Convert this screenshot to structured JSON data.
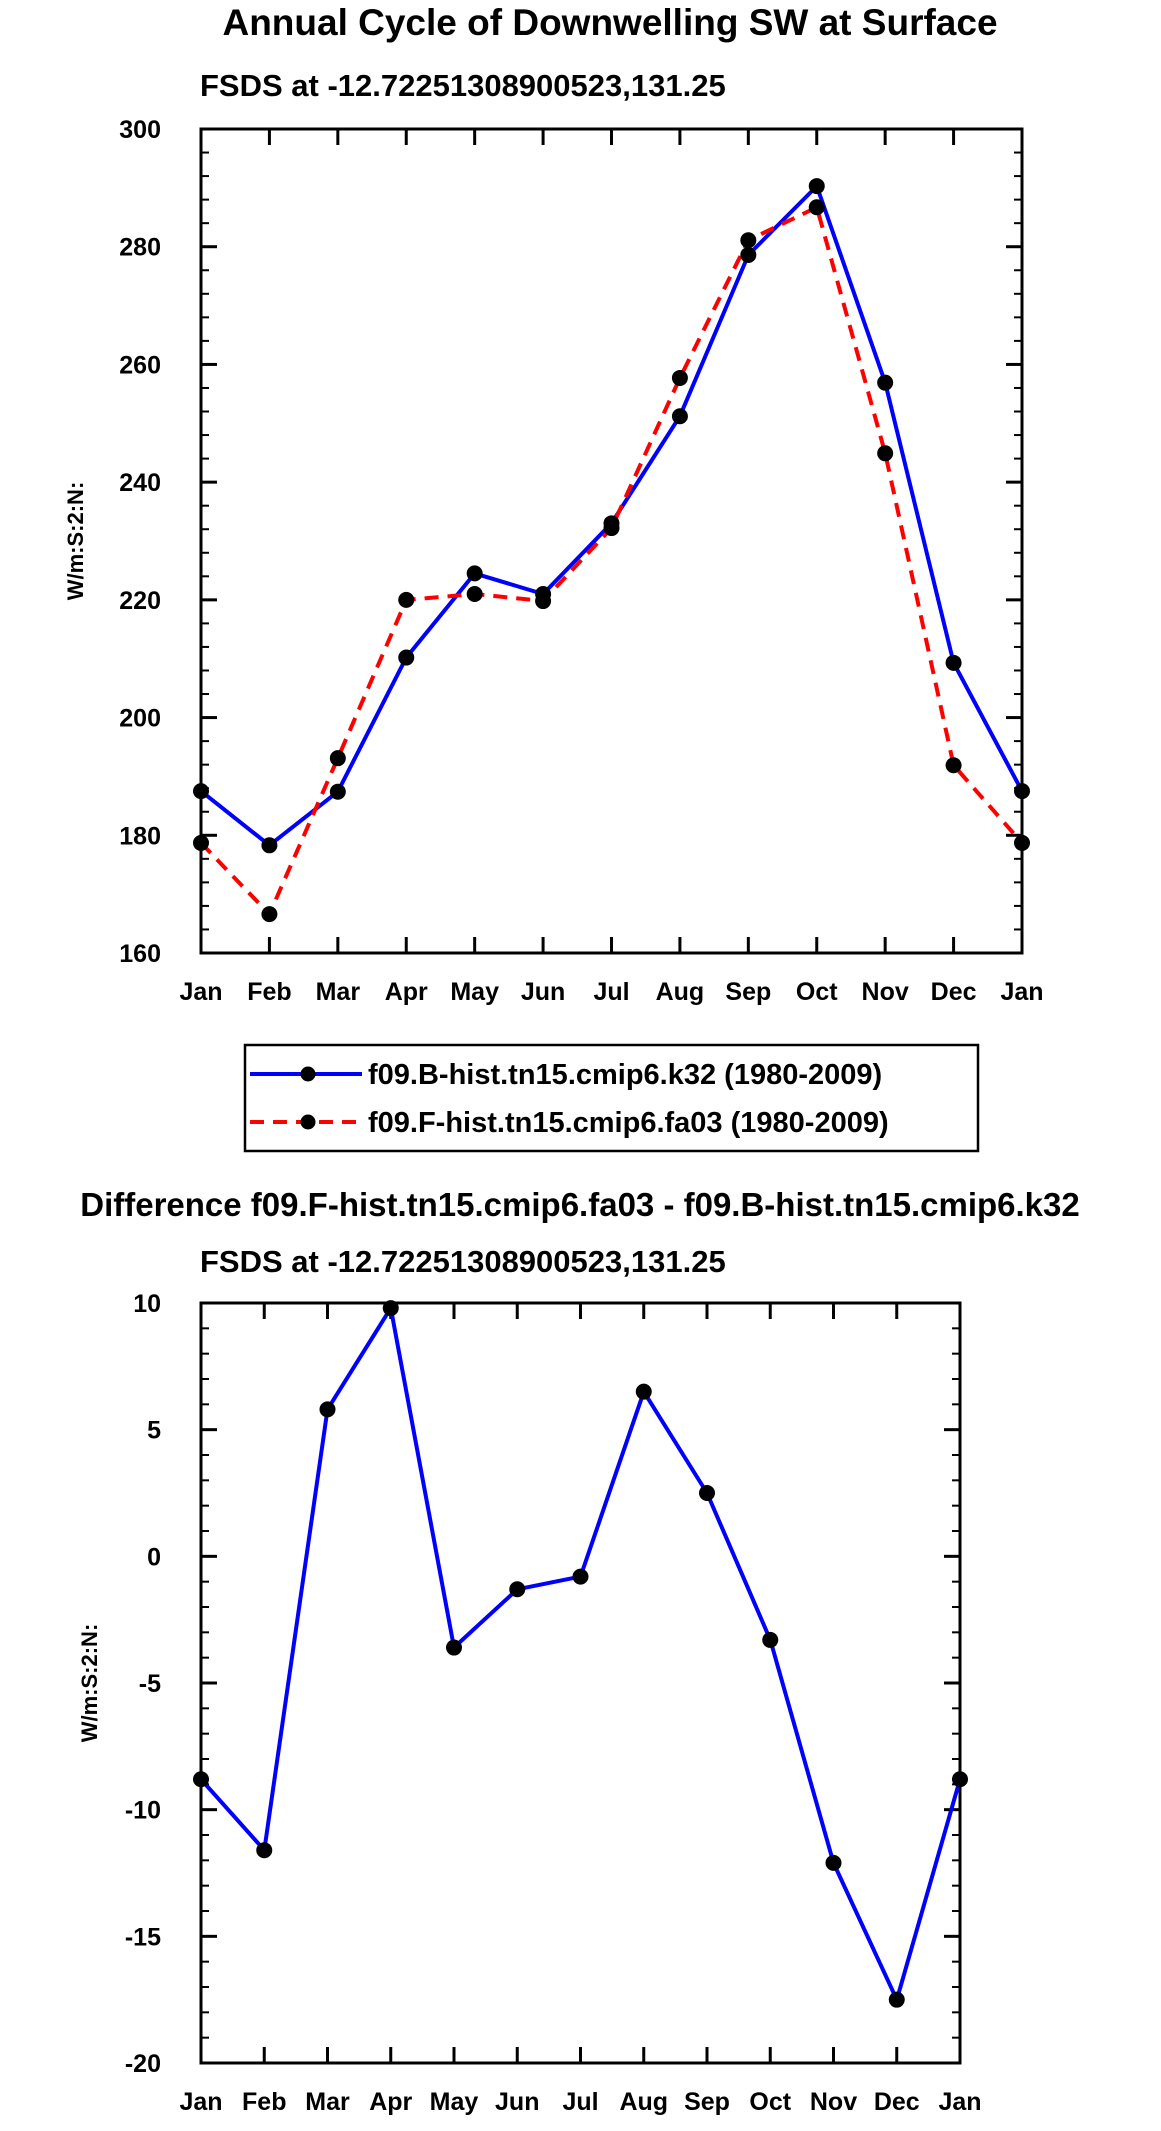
{
  "chart_data": [
    {
      "type": "line",
      "title": "Annual Cycle of Downwelling SW at Surface",
      "subtitle": "FSDS at -12.72251308900523,131.25",
      "ylabel": "W/m:S:2:N:",
      "xlabel": "",
      "categories": [
        "Jan",
        "Feb",
        "Mar",
        "Apr",
        "May",
        "Jun",
        "Jul",
        "Aug",
        "Sep",
        "Oct",
        "Nov",
        "Dec",
        "Jan"
      ],
      "ylim": [
        160,
        300
      ],
      "yticks": [
        160,
        180,
        200,
        220,
        240,
        260,
        280,
        300
      ],
      "ytick_labels": [
        "160",
        "180",
        "200",
        "220",
        "240",
        "260",
        "280",
        "300"
      ],
      "series": [
        {
          "name": "f09.B-hist.tn15.cmip6.k32 (1980-2009)",
          "color": "#0000ff",
          "dash": "solid",
          "values": [
            187.5,
            178.3,
            187.4,
            210.2,
            224.5,
            221.0,
            233.0,
            251.2,
            278.6,
            290.3,
            256.9,
            209.3,
            187.5
          ]
        },
        {
          "name": "f09.F-hist.tn15.cmip6.fa03 (1980-2009)",
          "color": "#ff0000",
          "dash": "dashed",
          "values": [
            178.7,
            166.6,
            193.1,
            220.0,
            221.0,
            219.8,
            232.2,
            257.7,
            281.1,
            286.7,
            244.9,
            191.9,
            178.7
          ]
        }
      ],
      "legend": "below"
    },
    {
      "type": "line",
      "title": "Difference f09.F-hist.tn15.cmip6.fa03 - f09.B-hist.tn15.cmip6.k32",
      "subtitle": "FSDS at -12.72251308900523,131.25",
      "ylabel": "W/m:S:2:N:",
      "xlabel": "",
      "categories": [
        "Jan",
        "Feb",
        "Mar",
        "Apr",
        "May",
        "Jun",
        "Jul",
        "Aug",
        "Sep",
        "Oct",
        "Nov",
        "Dec",
        "Jan"
      ],
      "ylim": [
        -20,
        10
      ],
      "yticks": [
        -20,
        -15,
        -10,
        -5,
        0,
        5,
        10
      ],
      "ytick_labels": [
        "-20",
        "-15",
        "-10",
        "-5",
        "0",
        "5",
        "10"
      ],
      "series": [
        {
          "name": "Difference",
          "color": "#0000ff",
          "dash": "solid",
          "values": [
            -8.8,
            -11.6,
            5.8,
            9.8,
            -3.6,
            -1.3,
            -0.8,
            6.5,
            2.5,
            -3.3,
            -12.1,
            -17.5,
            -8.8
          ]
        }
      ]
    }
  ]
}
